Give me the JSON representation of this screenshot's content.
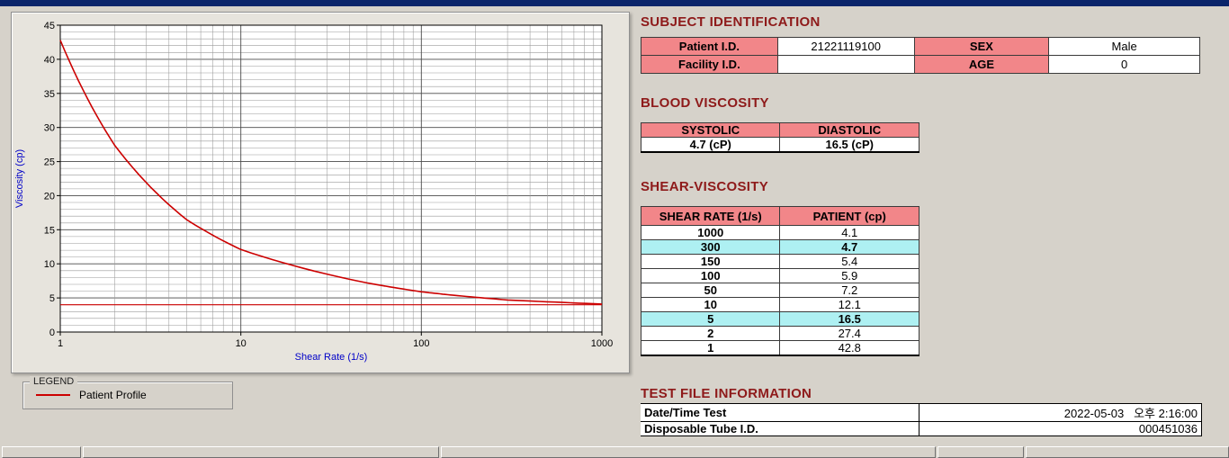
{
  "chart": {
    "y_ticks": [
      0,
      5,
      10,
      15,
      20,
      25,
      30,
      35,
      40,
      45
    ],
    "x_ticks": [
      1,
      10,
      100,
      1000
    ],
    "legend": {
      "group_label": "LEGEND",
      "series_label": "Patient Profile"
    }
  },
  "chart_data": {
    "type": "line",
    "x_scale": "log",
    "x": [
      1,
      2,
      5,
      10,
      50,
      100,
      150,
      300,
      1000
    ],
    "series": [
      {
        "name": "Patient Profile",
        "values": [
          42.8,
          27.4,
          16.5,
          12.1,
          7.2,
          5.9,
          5.4,
          4.7,
          4.1
        ]
      }
    ],
    "baseline_y": 4.0,
    "title": "",
    "xlabel": "Shear Rate (1/s)",
    "ylabel": "Viscosity (cp)",
    "xlim": [
      1,
      1000
    ],
    "ylim": [
      0,
      45
    ],
    "grid": true,
    "line_color": "#CC0000"
  },
  "subject": {
    "title": "SUBJECT IDENTIFICATION",
    "patient_id_label": "Patient I.D.",
    "patient_id": "21221119100",
    "sex_label": "SEX",
    "sex": "Male",
    "facility_label": "Facility I.D.",
    "facility": "",
    "age_label": "AGE",
    "age": "0"
  },
  "blood_viscosity": {
    "title": "BLOOD VISCOSITY",
    "systolic_label": "SYSTOLIC",
    "diastolic_label": "DIASTOLIC",
    "systolic_value": "4.7 (cP)",
    "diastolic_value": "16.5 (cP)"
  },
  "shear_viscosity": {
    "title": "SHEAR-VISCOSITY",
    "col_rate": "SHEAR RATE (1/s)",
    "col_patient": "PATIENT (cp)",
    "rows": [
      {
        "rate": "1000",
        "value": "4.1",
        "highlight": false
      },
      {
        "rate": "300",
        "value": "4.7",
        "highlight": true
      },
      {
        "rate": "150",
        "value": "5.4",
        "highlight": false
      },
      {
        "rate": "100",
        "value": "5.9",
        "highlight": false
      },
      {
        "rate": "50",
        "value": "7.2",
        "highlight": false
      },
      {
        "rate": "10",
        "value": "12.1",
        "highlight": false
      },
      {
        "rate": "5",
        "value": "16.5",
        "highlight": true
      },
      {
        "rate": "2",
        "value": "27.4",
        "highlight": false
      },
      {
        "rate": "1",
        "value": "42.8",
        "highlight": false
      }
    ]
  },
  "test_file": {
    "title": "TEST FILE INFORMATION",
    "rows": [
      {
        "label": "Date/Time Test",
        "value": "2022-05-03   오후 2:16:00"
      },
      {
        "label": "Disposable Tube I.D.",
        "value": "000451036"
      }
    ]
  },
  "colors": {
    "accent_pink": "#F28689",
    "highlight_cyan": "#AEF0F2",
    "title_maroon": "#8E1A1A",
    "curve_red": "#CC0000",
    "axis_blue": "#0000C8",
    "titlebar_blue": "#0A246A"
  }
}
